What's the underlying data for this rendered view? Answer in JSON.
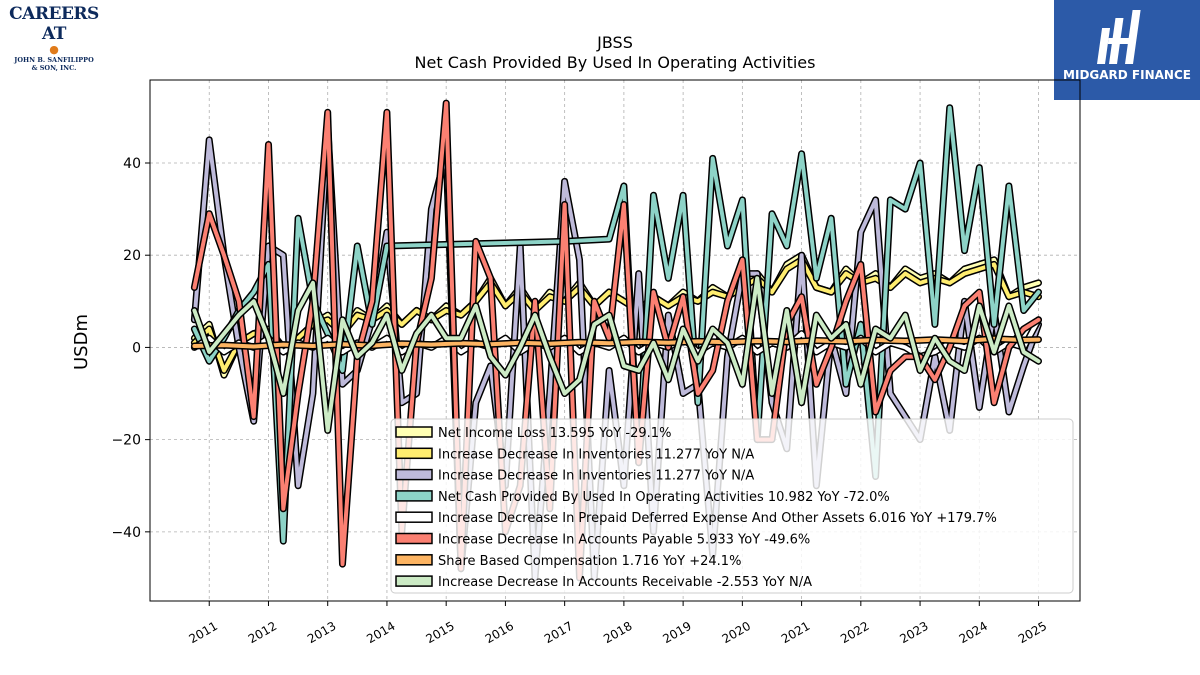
{
  "logos": {
    "left": {
      "line1": "CAREERS AT",
      "line2": "JOHN B. SANFILIPPO",
      "line3": "& SON, INC."
    },
    "right": {
      "name": "MIDGARD FINANCE"
    }
  },
  "chart_data": {
    "type": "line",
    "title": "JBSS",
    "subtitle": "Net Cash Provided By Used In Operating Activities",
    "ylabel": "USDm",
    "xlabel": "",
    "ylim": [
      -55,
      58
    ],
    "yticks": [
      -40,
      -20,
      0,
      20,
      40
    ],
    "xlim": [
      2010.0,
      2025.7
    ],
    "xticks": [
      2011,
      2012,
      2013,
      2014,
      2015,
      2016,
      2017,
      2018,
      2019,
      2020,
      2021,
      2022,
      2023,
      2024,
      2025
    ],
    "grid": true,
    "legend_position": "lower-right",
    "series": [
      {
        "name": "Net Income Loss",
        "legend_value": "13.595",
        "legend_yoy": "YoY -29.1%",
        "color": "#ffffb3",
        "x": [
          2010.75,
          2011.0,
          2011.25,
          2011.5,
          2011.75,
          2012.0,
          2012.25,
          2012.5,
          2012.75,
          2013.0,
          2013.25,
          2013.5,
          2013.75,
          2014.0,
          2014.25,
          2014.5,
          2014.75,
          2015.0,
          2015.25,
          2015.5,
          2015.75,
          2016.0,
          2016.25,
          2016.5,
          2016.75,
          2017.0,
          2017.25,
          2017.5,
          2017.75,
          2018.0,
          2018.25,
          2018.5,
          2018.75,
          2019.0,
          2019.25,
          2019.5,
          2019.75,
          2020.0,
          2020.25,
          2020.5,
          2020.75,
          2021.0,
          2021.25,
          2021.5,
          2021.75,
          2022.0,
          2022.25,
          2022.5,
          2022.75,
          2023.0,
          2023.25,
          2023.5,
          2023.75,
          2024.0,
          2024.25,
          2024.5,
          2024.75,
          2025.0
        ],
        "y": [
          2,
          5,
          -6,
          1,
          3,
          4,
          0,
          2,
          5,
          7,
          3,
          8,
          6,
          9,
          5,
          8,
          6,
          9,
          7,
          10,
          15,
          9,
          13,
          8,
          12,
          10,
          14,
          9,
          12,
          10,
          8,
          11,
          9,
          12,
          10,
          13,
          11,
          14,
          16,
          12,
          18,
          20,
          13,
          12,
          17,
          14,
          16,
          13,
          17,
          15,
          16,
          14,
          17,
          18,
          19,
          11,
          13,
          14
        ]
      },
      {
        "name": "Increase Decrease In Inventories",
        "legend_value": "11.277",
        "legend_yoy": "YoY N/A",
        "color": "#ffed6f",
        "x": [
          2010.75,
          2011.0,
          2011.25,
          2011.5,
          2011.75,
          2012.0,
          2012.25,
          2012.5,
          2012.75,
          2013.0,
          2013.25,
          2013.5,
          2013.75,
          2014.0,
          2014.25,
          2014.5,
          2014.75,
          2015.0,
          2015.25,
          2015.5,
          2015.75,
          2016.0,
          2016.25,
          2016.5,
          2016.75,
          2017.0,
          2017.25,
          2017.5,
          2017.75,
          2018.0,
          2018.25,
          2018.5,
          2018.75,
          2019.0,
          2019.25,
          2019.5,
          2019.75,
          2020.0,
          2020.25,
          2020.5,
          2020.75,
          2021.0,
          2021.25,
          2021.5,
          2021.75,
          2022.0,
          2022.25,
          2022.5,
          2022.75,
          2023.0,
          2023.25,
          2023.5,
          2023.75,
          2024.0,
          2024.25,
          2024.5,
          2024.75,
          2025.0
        ],
        "y": [
          1,
          4,
          -5,
          1,
          3,
          3,
          0,
          2,
          5,
          6,
          3,
          7,
          6,
          8,
          5,
          8,
          6,
          8,
          7,
          10,
          14,
          9,
          12,
          8,
          11,
          10,
          13,
          9,
          12,
          10,
          8,
          11,
          9,
          11,
          10,
          12,
          11,
          13,
          15,
          12,
          17,
          19,
          13,
          12,
          16,
          14,
          15,
          13,
          16,
          14,
          15,
          14,
          16,
          17,
          18,
          11,
          12,
          11
        ]
      },
      {
        "name": "Increase Decrease In Inventories",
        "legend_value": "11.277",
        "legend_yoy": "YoY N/A",
        "color": "#bebada",
        "x": [
          2010.75,
          2011.0,
          2011.25,
          2011.5,
          2011.75,
          2012.0,
          2012.25,
          2012.5,
          2012.75,
          2013.0,
          2013.25,
          2013.5,
          2013.75,
          2014.0,
          2014.25,
          2014.5,
          2014.75,
          2015.0,
          2015.25,
          2015.5,
          2015.75,
          2016.0,
          2016.25,
          2016.5,
          2016.75,
          2017.0,
          2017.25,
          2017.5,
          2017.75,
          2018.0,
          2018.25,
          2018.5,
          2018.75,
          2019.0,
          2019.25,
          2019.5,
          2019.75,
          2020.0,
          2020.25,
          2020.5,
          2020.75,
          2021.0,
          2021.25,
          2021.5,
          2021.75,
          2022.0,
          2022.25,
          2022.5,
          2022.75,
          2023.0,
          2023.25,
          2023.5,
          2023.75,
          2024.0,
          2024.25,
          2024.5,
          2024.75,
          2025.0
        ],
        "y": [
          6,
          45,
          20,
          0,
          -16,
          22,
          20,
          -30,
          -10,
          48,
          -8,
          -5,
          6,
          25,
          -12,
          -10,
          30,
          42,
          -48,
          -12,
          -4,
          -30,
          22,
          -50,
          -10,
          36,
          19,
          -50,
          -5,
          -30,
          16,
          -40,
          7,
          -10,
          -8,
          -45,
          -2,
          16,
          16,
          -12,
          -22,
          20,
          -30,
          2,
          -10,
          25,
          32,
          -10,
          -15,
          -20,
          -2,
          -18,
          10,
          -13,
          8,
          -14,
          -4,
          5
        ]
      },
      {
        "name": "Net Cash Provided By Used In Operating Activities",
        "legend_value": "10.982",
        "legend_yoy": "YoY -72.0%",
        "color": "#8dd3c7",
        "x": [
          2010.75,
          2011.0,
          2011.25,
          2011.5,
          2011.75,
          2012.0,
          2012.25,
          2012.5,
          2012.75,
          2013.0,
          2013.25,
          2013.5,
          2013.75,
          2014.0,
          2017.0,
          2017.75,
          2018.0,
          2018.25,
          2018.5,
          2018.75,
          2019.0,
          2019.25,
          2019.5,
          2019.75,
          2020.0,
          2020.25,
          2020.5,
          2020.75,
          2021.0,
          2021.25,
          2021.5,
          2021.75,
          2022.0,
          2022.25,
          2022.5,
          2022.75,
          2023.0,
          2023.25,
          2023.5,
          2023.75,
          2024.0,
          2024.25,
          2024.5,
          2024.75,
          2025.0
        ],
        "y": [
          4,
          -3,
          2,
          8,
          12,
          18,
          -42,
          28,
          10,
          3,
          -5,
          22,
          5,
          22,
          23,
          23.5,
          35,
          -25,
          33,
          15,
          33,
          -12,
          41,
          22,
          32,
          -20,
          29,
          22,
          42,
          15,
          28,
          -8,
          5,
          -28,
          32,
          30,
          40,
          5,
          52,
          21,
          39,
          5,
          35,
          8,
          12
        ]
      },
      {
        "name": "Increase Decrease In Prepaid Deferred Expense And Other Assets",
        "legend_value": "6.016",
        "legend_yoy": "YoY +179.7%",
        "color": "#ffffff",
        "x": [
          2010.75,
          2011.0,
          2011.25,
          2011.5,
          2011.75,
          2012.0,
          2012.25,
          2012.5,
          2012.75,
          2013.0,
          2013.25,
          2013.5,
          2013.75,
          2014.0,
          2014.25,
          2014.5,
          2014.75,
          2015.0,
          2015.25,
          2015.5,
          2015.75,
          2016.0,
          2016.25,
          2016.5,
          2016.75,
          2017.0,
          2017.25,
          2017.5,
          2017.75,
          2018.0,
          2018.25,
          2018.5,
          2018.75,
          2019.0,
          2019.25,
          2019.5,
          2019.75,
          2020.0,
          2020.25,
          2020.5,
          2020.75,
          2021.0,
          2021.25,
          2021.5,
          2021.75,
          2022.0,
          2022.25,
          2022.5,
          2022.75,
          2023.0,
          2023.25,
          2023.5,
          2023.75,
          2024.0,
          2024.25,
          2024.5,
          2024.75,
          2025.0
        ],
        "y": [
          0,
          2,
          -1,
          1,
          0,
          2,
          -1,
          1,
          0,
          2,
          -1,
          1,
          0,
          2,
          -1,
          1,
          0,
          2,
          -1,
          1,
          0,
          2,
          -1,
          1,
          0,
          2,
          -1,
          1,
          0,
          2,
          -1,
          1,
          0,
          2,
          -1,
          1,
          0,
          2,
          -1,
          1,
          0,
          3,
          -1,
          1,
          0,
          2,
          -1,
          1,
          0,
          -2,
          -1,
          1,
          0,
          2,
          -1,
          1,
          0,
          6
        ]
      },
      {
        "name": "Increase Decrease In Accounts Payable",
        "legend_value": "5.933",
        "legend_yoy": "YoY -49.6%",
        "color": "#fb8072",
        "x": [
          2010.75,
          2011.0,
          2011.25,
          2011.5,
          2011.75,
          2012.0,
          2012.25,
          2012.5,
          2012.75,
          2013.0,
          2013.25,
          2013.5,
          2013.75,
          2014.0,
          2014.25,
          2014.5,
          2014.75,
          2015.0,
          2015.25,
          2015.5,
          2015.75,
          2016.0,
          2016.25,
          2016.5,
          2016.75,
          2017.0,
          2017.25,
          2017.5,
          2017.75,
          2018.0,
          2018.25,
          2018.5,
          2018.75,
          2019.0,
          2019.25,
          2019.5,
          2019.75,
          2020.0,
          2020.25,
          2020.5,
          2020.75,
          2021.0,
          2021.25,
          2021.5,
          2021.75,
          2022.0,
          2022.25,
          2022.5,
          2022.75,
          2023.0,
          2023.25,
          2023.5,
          2023.75,
          2024.0,
          2024.25,
          2024.5,
          2024.75,
          2025.0
        ],
        "y": [
          13,
          29,
          20,
          10,
          -15,
          44,
          -35,
          -10,
          10,
          51,
          -47,
          -2,
          10,
          51,
          -40,
          1,
          15,
          53,
          -48,
          23,
          15,
          -40,
          -30,
          10,
          -35,
          31,
          -50,
          10,
          2,
          31,
          -25,
          12,
          0,
          11,
          -10,
          -5,
          10,
          19,
          -20,
          -20,
          5,
          11,
          -8,
          0,
          10,
          18,
          -14,
          -5,
          -2,
          -2,
          -7,
          0,
          9,
          12,
          -12,
          0,
          4,
          6
        ]
      },
      {
        "name": "Share Based Compensation",
        "legend_value": "1.716",
        "legend_yoy": "YoY +24.1%",
        "color": "#fdb462",
        "x": [
          2010.75,
          2011.25,
          2011.75,
          2012.25,
          2012.75,
          2013.25,
          2013.75,
          2014.25,
          2014.75,
          2015.25,
          2015.75,
          2016.25,
          2016.75,
          2017.25,
          2017.75,
          2018.25,
          2018.75,
          2019.25,
          2019.75,
          2020.25,
          2020.75,
          2021.25,
          2021.75,
          2022.25,
          2022.75,
          2023.25,
          2023.75,
          2024.25,
          2024.75,
          2025.0
        ],
        "y": [
          0.3,
          0.5,
          0.2,
          0.6,
          0.3,
          0.7,
          0.4,
          0.8,
          0.6,
          0.9,
          0.7,
          1.0,
          0.8,
          1.1,
          0.9,
          1.2,
          1.0,
          1.3,
          1.1,
          1.4,
          1.2,
          1.5,
          1.3,
          1.6,
          1.4,
          1.7,
          1.4,
          1.9,
          1.6,
          1.7
        ]
      },
      {
        "name": "Increase Decrease In Accounts Receivable",
        "legend_value": "-2.553",
        "legend_yoy": "YoY N/A",
        "color": "#ccebc5",
        "x": [
          2010.75,
          2011.0,
          2011.25,
          2011.5,
          2011.75,
          2012.0,
          2012.25,
          2012.5,
          2012.75,
          2013.0,
          2013.25,
          2013.5,
          2013.75,
          2014.0,
          2014.25,
          2014.5,
          2014.75,
          2015.0,
          2015.25,
          2015.5,
          2015.75,
          2016.0,
          2016.25,
          2016.5,
          2016.75,
          2017.0,
          2017.25,
          2017.5,
          2017.75,
          2018.0,
          2018.25,
          2018.5,
          2018.75,
          2019.0,
          2019.25,
          2019.5,
          2019.75,
          2020.0,
          2020.25,
          2020.5,
          2020.75,
          2021.0,
          2021.25,
          2021.5,
          2021.75,
          2022.0,
          2022.25,
          2022.5,
          2022.75,
          2023.0,
          2023.25,
          2023.5,
          2023.75,
          2024.0,
          2024.25,
          2024.5,
          2024.75,
          2025.0
        ],
        "y": [
          8,
          -1,
          3,
          7,
          10,
          2,
          -10,
          8,
          14,
          -18,
          6,
          -2,
          1,
          7,
          -5,
          3,
          7,
          2,
          2,
          9,
          -2,
          -6,
          0,
          7,
          -2,
          -10,
          -7,
          5,
          7,
          -4,
          -5,
          1,
          -7,
          4,
          -3,
          4,
          1,
          -8,
          15,
          -10,
          8,
          -12,
          7,
          2,
          5,
          -8,
          4,
          2,
          7,
          -5,
          2,
          -3,
          -5,
          9,
          -1,
          9,
          -1,
          -3
        ]
      }
    ]
  }
}
